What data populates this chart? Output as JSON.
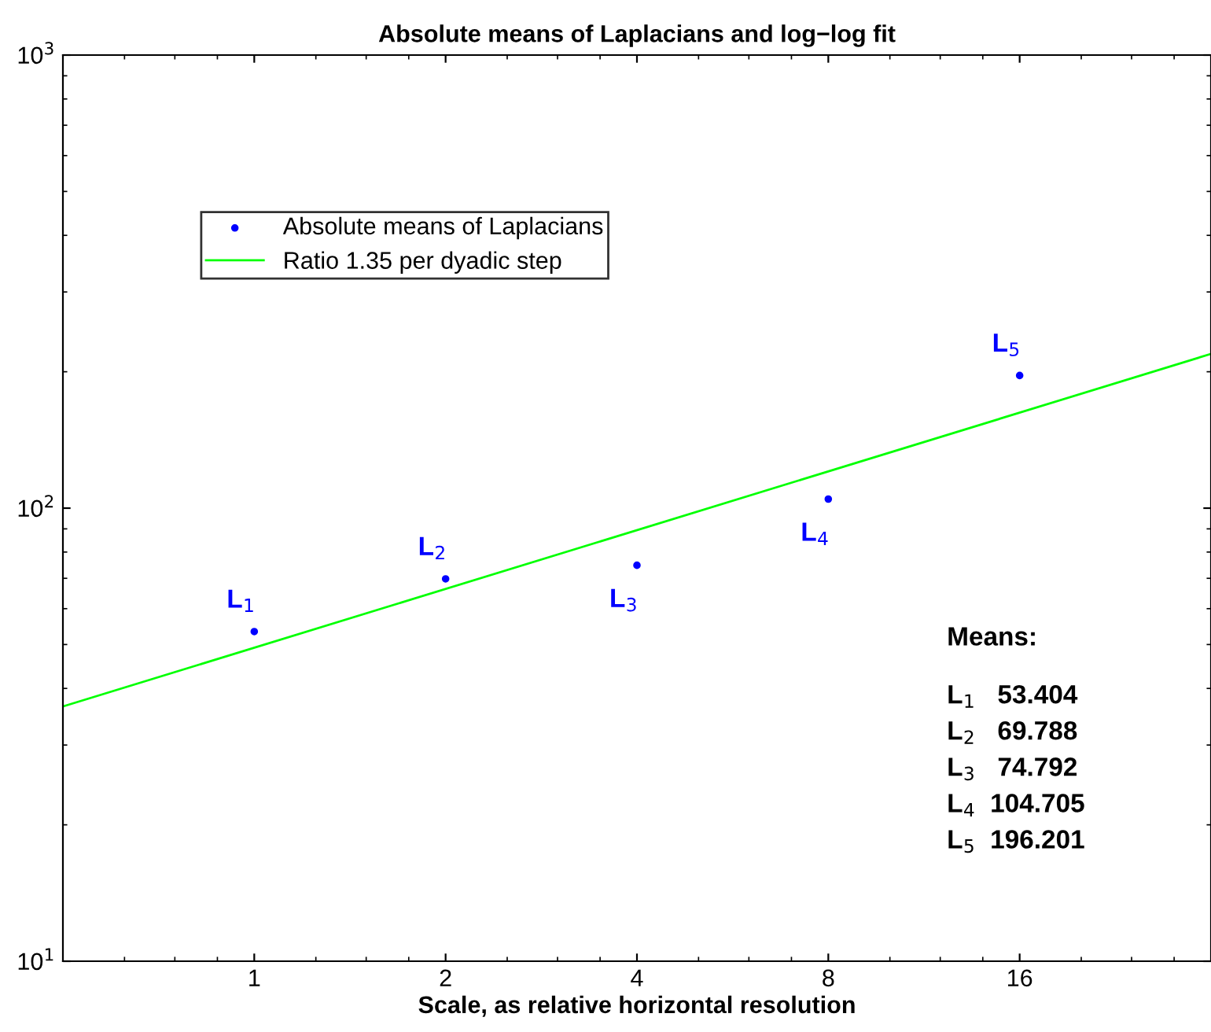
{
  "chart_data": {
    "type": "scatter",
    "title": "Absolute means of Laplacians and log−log fit",
    "xlabel": "Scale, as relative horizontal resolution",
    "log": "xy",
    "x": [
      1,
      2,
      4,
      8,
      16
    ],
    "series": [
      {
        "name": "Absolute means of Laplacians",
        "color": "#0000ff",
        "values": [
          53.404,
          69.788,
          74.792,
          104.705,
          196.201
        ],
        "marker": "circle"
      },
      {
        "name": "Ratio 1.35 per dyadic step",
        "type": "line",
        "color": "#00ff00",
        "x": [
          0.5,
          32
        ],
        "values": [
          36.5,
          219
        ],
        "marker": "none"
      }
    ],
    "xlim": [
      0.5,
      32
    ],
    "xticks": [
      1,
      2,
      4,
      8,
      16
    ],
    "ylim": [
      10,
      1000
    ],
    "yticks": [
      {
        "value": 10,
        "label": "10$^{1}$"
      },
      {
        "value": 100,
        "label": "10$^{2}$"
      },
      {
        "value": 1000,
        "label": "10$^{3}$"
      }
    ],
    "grid": false,
    "legend": "top left",
    "annotations": [
      {
        "text": "L$_{1}$",
        "x": 1,
        "y": 53.404
      },
      {
        "text": "L$_{2}$",
        "x": 2,
        "y": 69.788
      },
      {
        "text": "L$_{3}$",
        "x": 4,
        "y": 74.792
      },
      {
        "text": "L$_{4}$",
        "x": 8,
        "y": 104.705
      },
      {
        "text": "L$_{5}$",
        "x": 16,
        "y": 196.201
      },
      "Means:",
      "L$_{1}$   53.404",
      "L$_{2}$   69.788",
      "L$_{3}$   74.792",
      "L$_{4}$  104.705",
      "L$_{5}$  196.201"
    ]
  }
}
